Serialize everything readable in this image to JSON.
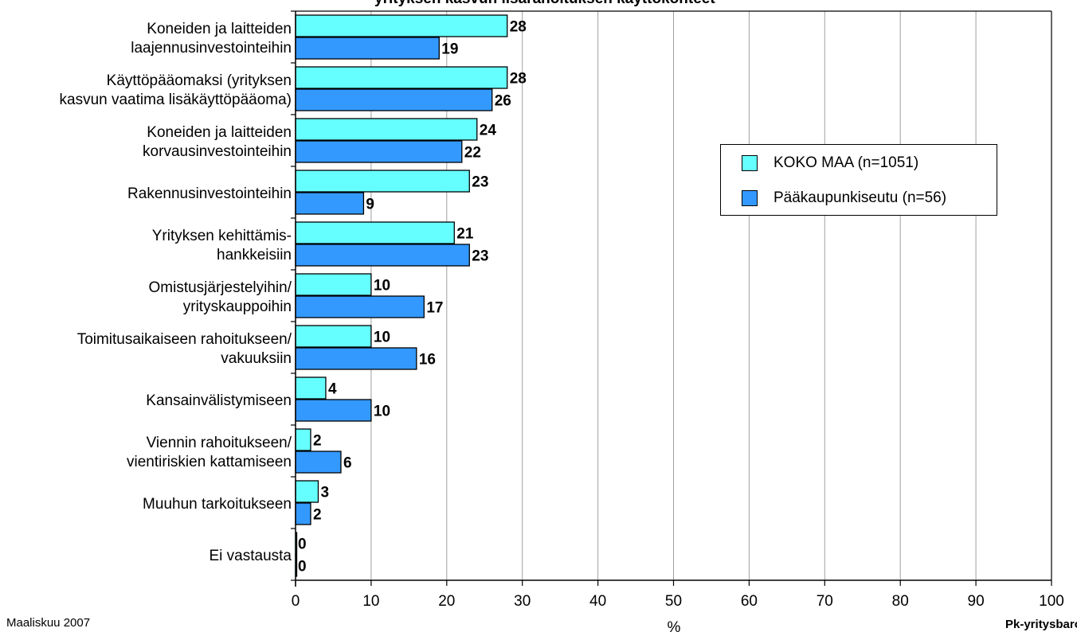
{
  "title_fragment": "yrityksen kasvun lisärahoituksen käyttökohteet",
  "footer": {
    "left": "Maaliskuu 2007",
    "right": "Pk-yritysbarometri"
  },
  "chart_data": {
    "type": "bar",
    "orientation": "horizontal",
    "categories": [
      [
        "Koneiden ja laitteiden",
        "laajennusinvestointeihin"
      ],
      [
        "Käyttöpääomaksi (yrityksen",
        "kasvun vaatima lisäkäyttöpääoma)"
      ],
      [
        "Koneiden ja laitteiden",
        "korvausinvestointeihin"
      ],
      [
        "Rakennusinvestointeihin"
      ],
      [
        "Yrityksen kehittämis-",
        "hankkeisiin"
      ],
      [
        "Omistusjärjestelyihin/",
        "yrityskauppoihin"
      ],
      [
        "Toimitusaikaiseen rahoitukseen/",
        "vakuuksiin"
      ],
      [
        "Kansainvälistymiseen"
      ],
      [
        "Viennin rahoitukseen/",
        "vientiriskien kattamiseen"
      ],
      [
        "Muuhun tarkoitukseen"
      ],
      [
        "Ei vastausta"
      ]
    ],
    "series": [
      {
        "name": "KOKO MAA (n=1051)",
        "color": "#66ffff",
        "values": [
          28,
          28,
          24,
          23,
          21,
          10,
          10,
          4,
          2,
          3,
          0
        ]
      },
      {
        "name": "Pääkaupunkiseutu (n=56)",
        "color": "#3399ff",
        "values": [
          19,
          26,
          22,
          9,
          23,
          17,
          16,
          10,
          6,
          2,
          0
        ]
      }
    ],
    "xlabel": "%",
    "xlim": [
      0,
      100
    ],
    "xticks": [
      0,
      10,
      20,
      30,
      40,
      50,
      60,
      70,
      80,
      90,
      100
    ],
    "grid": true,
    "legend_position": "right"
  }
}
